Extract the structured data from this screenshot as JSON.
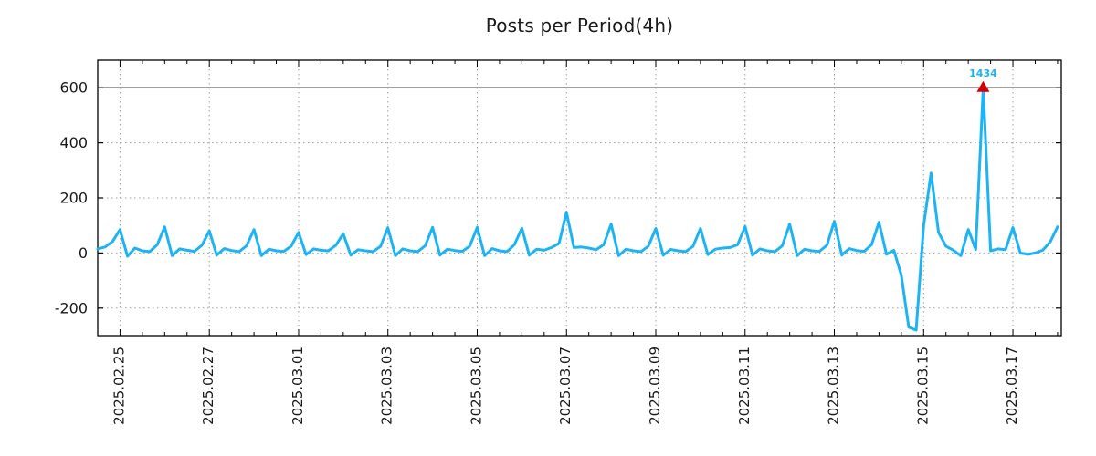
{
  "chart_data": {
    "type": "line",
    "title": "Posts per Period(4h)",
    "period": "4h",
    "line_color": "#1eb3f2",
    "marker_color": "#d40000",
    "annotation": {
      "text": "1434",
      "value": 1434,
      "marker": "red-triangle-up"
    },
    "ylim": [
      -300,
      700
    ],
    "clip_value": 600,
    "grid": "dotted",
    "y_ticks": [
      -200,
      0,
      200,
      400,
      600
    ],
    "x_tick_labels": [
      "2025.02.25",
      "2025.02.27",
      "2025.03.01",
      "2025.03.03",
      "2025.03.05",
      "2025.03.07",
      "2025.03.09",
      "2025.03.11",
      "2025.03.13",
      "2025.03.15",
      "2025.03.17"
    ],
    "x_tick_first_offset_hours": 12,
    "x_tick_interval_hours": 48,
    "x_minor_tick_interval_hours": 12,
    "x_span_hours": 518,
    "step_hours": 4,
    "series": [
      {
        "date": "2025.02.24",
        "from_hour": 12,
        "values": [
          15,
          22,
          42
        ]
      },
      {
        "date": "2025.02.25",
        "values": [
          85,
          -12,
          18,
          8,
          5,
          30
        ]
      },
      {
        "date": "2025.02.26",
        "values": [
          95,
          -10,
          15,
          10,
          6,
          28
        ]
      },
      {
        "date": "2025.02.27",
        "values": [
          80,
          -8,
          16,
          9,
          5,
          26
        ]
      },
      {
        "date": "2025.02.28",
        "values": [
          85,
          -10,
          14,
          8,
          6,
          25
        ]
      },
      {
        "date": "2025.03.01",
        "values": [
          75,
          -6,
          15,
          10,
          8,
          28
        ]
      },
      {
        "date": "2025.03.02",
        "values": [
          70,
          -8,
          12,
          8,
          5,
          24
        ]
      },
      {
        "date": "2025.03.03",
        "values": [
          92,
          -10,
          15,
          8,
          5,
          26
        ]
      },
      {
        "date": "2025.03.04",
        "values": [
          93,
          -8,
          14,
          9,
          6,
          25
        ]
      },
      {
        "date": "2025.03.05",
        "values": [
          93,
          -10,
          16,
          8,
          5,
          30
        ]
      },
      {
        "date": "2025.03.06",
        "values": [
          90,
          -8,
          14,
          10,
          20,
          35
        ]
      },
      {
        "date": "2025.03.07",
        "values": [
          148,
          20,
          22,
          18,
          12,
          30
        ]
      },
      {
        "date": "2025.03.08",
        "values": [
          105,
          -10,
          14,
          8,
          5,
          25
        ]
      },
      {
        "date": "2025.03.09",
        "values": [
          89,
          -8,
          13,
          8,
          5,
          24
        ]
      },
      {
        "date": "2025.03.10",
        "values": [
          89,
          -6,
          14,
          18,
          20,
          30
        ]
      },
      {
        "date": "2025.03.11",
        "values": [
          96,
          -8,
          15,
          8,
          5,
          26
        ]
      },
      {
        "date": "2025.03.12",
        "values": [
          105,
          -10,
          14,
          8,
          6,
          28
        ]
      },
      {
        "date": "2025.03.13",
        "values": [
          115,
          -8,
          16,
          9,
          6,
          30
        ]
      },
      {
        "date": "2025.03.14",
        "values": [
          112,
          -5,
          10,
          -80,
          -270,
          -280
        ]
      },
      {
        "date": "2025.03.15",
        "values": [
          100,
          290,
          75,
          25,
          10,
          -10
        ]
      },
      {
        "date": "2025.03.16",
        "values": [
          85,
          13,
          1434,
          8,
          15,
          12
        ]
      },
      {
        "date": "2025.03.17",
        "values": [
          92,
          0,
          -5,
          0,
          10,
          40
        ]
      },
      {
        "date": "2025.03.18",
        "values": [
          95
        ]
      }
    ]
  }
}
